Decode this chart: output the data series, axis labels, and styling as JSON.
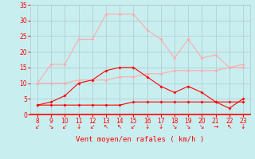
{
  "x": [
    8,
    9,
    10,
    11,
    12,
    13,
    14,
    15,
    16,
    17,
    18,
    19,
    20,
    21,
    22,
    23
  ],
  "wind_avg": [
    3,
    4,
    6,
    10,
    11,
    14,
    15,
    15,
    12,
    9,
    7,
    9,
    7,
    4,
    2,
    5
  ],
  "wind_gust": [
    10,
    16,
    16,
    24,
    24,
    32,
    32,
    32,
    27,
    24,
    18,
    24,
    18,
    19,
    15,
    16
  ],
  "wind_min": [
    3,
    3,
    3,
    3,
    3,
    3,
    3,
    4,
    4,
    4,
    4,
    4,
    4,
    4,
    4,
    4
  ],
  "wind_trend": [
    10,
    10,
    10,
    11,
    11,
    11,
    12,
    12,
    13,
    13,
    14,
    14,
    14,
    14,
    15,
    15
  ],
  "color_avg": "#ff0000",
  "color_gust": "#ffaaaa",
  "color_min": "#ff0000",
  "color_trend": "#ffaaaa",
  "bg_color": "#c8eef0",
  "grid_color": "#b0c8cc",
  "xlabel": "Vent moyen/en rafales ( km/h )",
  "xlabel_color": "#ff0000",
  "tick_color": "#ff0000",
  "ylim": [
    0,
    35
  ],
  "yticks": [
    0,
    5,
    10,
    15,
    20,
    25,
    30,
    35
  ],
  "xlim": [
    7.5,
    23.5
  ],
  "wind_arrows": [
    "↙",
    "↘",
    "↙",
    "↓",
    "↙",
    "↖",
    "↖",
    "↙",
    "↓",
    "↓",
    "↘",
    "↘",
    "↘",
    "→",
    "↖",
    "↓"
  ]
}
